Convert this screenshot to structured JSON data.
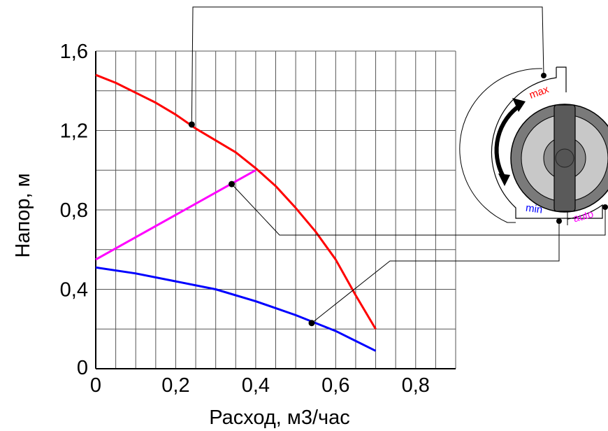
{
  "chart_data": {
    "type": "line",
    "xlabel": "Расход, м3/час",
    "ylabel": "Напор, м",
    "xlim": [
      0,
      0.9
    ],
    "ylim": [
      0,
      1.6
    ],
    "x_ticks": [
      "0",
      "0,2",
      "0,4",
      "0,6",
      "0,8"
    ],
    "y_ticks": [
      "0",
      "0,4",
      "0,8",
      "1,2",
      "1,6"
    ],
    "grid": true,
    "series": [
      {
        "name": "max",
        "color": "#ff0000",
        "x": [
          0,
          0.05,
          0.1,
          0.15,
          0.2,
          0.25,
          0.3,
          0.35,
          0.4,
          0.45,
          0.5,
          0.55,
          0.6,
          0.65,
          0.7
        ],
        "y": [
          1.48,
          1.44,
          1.39,
          1.34,
          1.28,
          1.21,
          1.15,
          1.09,
          1.01,
          0.92,
          0.81,
          0.69,
          0.55,
          0.37,
          0.2
        ]
      },
      {
        "name": "auto",
        "color": "#ff00ff",
        "x": [
          0,
          0.4
        ],
        "y": [
          0.55,
          1.0
        ]
      },
      {
        "name": "min",
        "color": "#0000ff",
        "x": [
          0,
          0.1,
          0.2,
          0.3,
          0.4,
          0.5,
          0.6,
          0.7
        ],
        "y": [
          0.51,
          0.48,
          0.44,
          0.4,
          0.34,
          0.27,
          0.19,
          0.09
        ]
      }
    ],
    "markers": [
      {
        "series": "max",
        "x": 0.24,
        "y": 1.23
      },
      {
        "series": "auto",
        "x": 0.34,
        "y": 0.93
      },
      {
        "series": "min",
        "x": 0.54,
        "y": 0.23
      }
    ]
  },
  "knob": {
    "labels": {
      "max": "max",
      "min": "min",
      "auto": "auto"
    },
    "colors": {
      "max": "#ff0000",
      "min": "#0000ff",
      "auto": "#ff00ff"
    }
  }
}
